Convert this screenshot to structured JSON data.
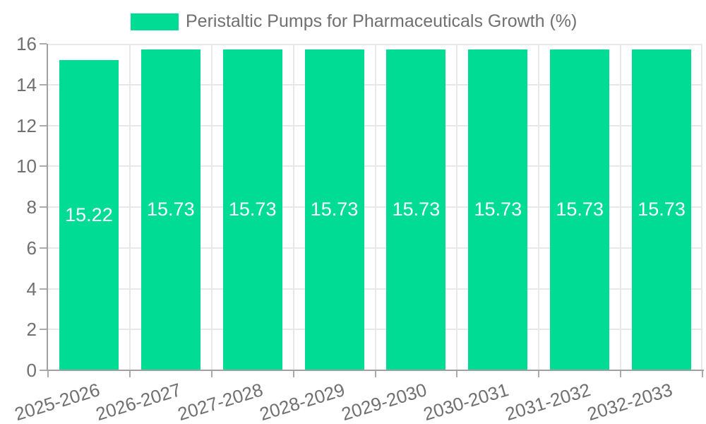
{
  "legend": {
    "label": "Peristaltic Pumps for Pharmaceuticals Growth (%)"
  },
  "chart_data": {
    "type": "bar",
    "title": "Peristaltic Pumps for Pharmaceuticals Growth (%)",
    "categories": [
      "2025-2026",
      "2026-2027",
      "2027-2028",
      "2028-2029",
      "2029-2030",
      "2030-2031",
      "2031-2032",
      "2032-2033"
    ],
    "values": [
      15.22,
      15.73,
      15.73,
      15.73,
      15.73,
      15.73,
      15.73,
      15.73
    ],
    "value_labels": [
      "15.22",
      "15.73",
      "15.73",
      "15.73",
      "15.73",
      "15.73",
      "15.73",
      "15.73"
    ],
    "xlabel": "",
    "ylabel": "",
    "ylim": [
      0,
      16
    ],
    "yticks": [
      0,
      2,
      4,
      6,
      8,
      10,
      12,
      14,
      16
    ],
    "grid": true,
    "legend_position": "top-center",
    "colors": {
      "bar": "#00DC94",
      "value_label": "#FFFFFF",
      "axis_text": "#707070",
      "gridline": "#E8E8E8",
      "axis_line": "#A0A0A0"
    }
  }
}
